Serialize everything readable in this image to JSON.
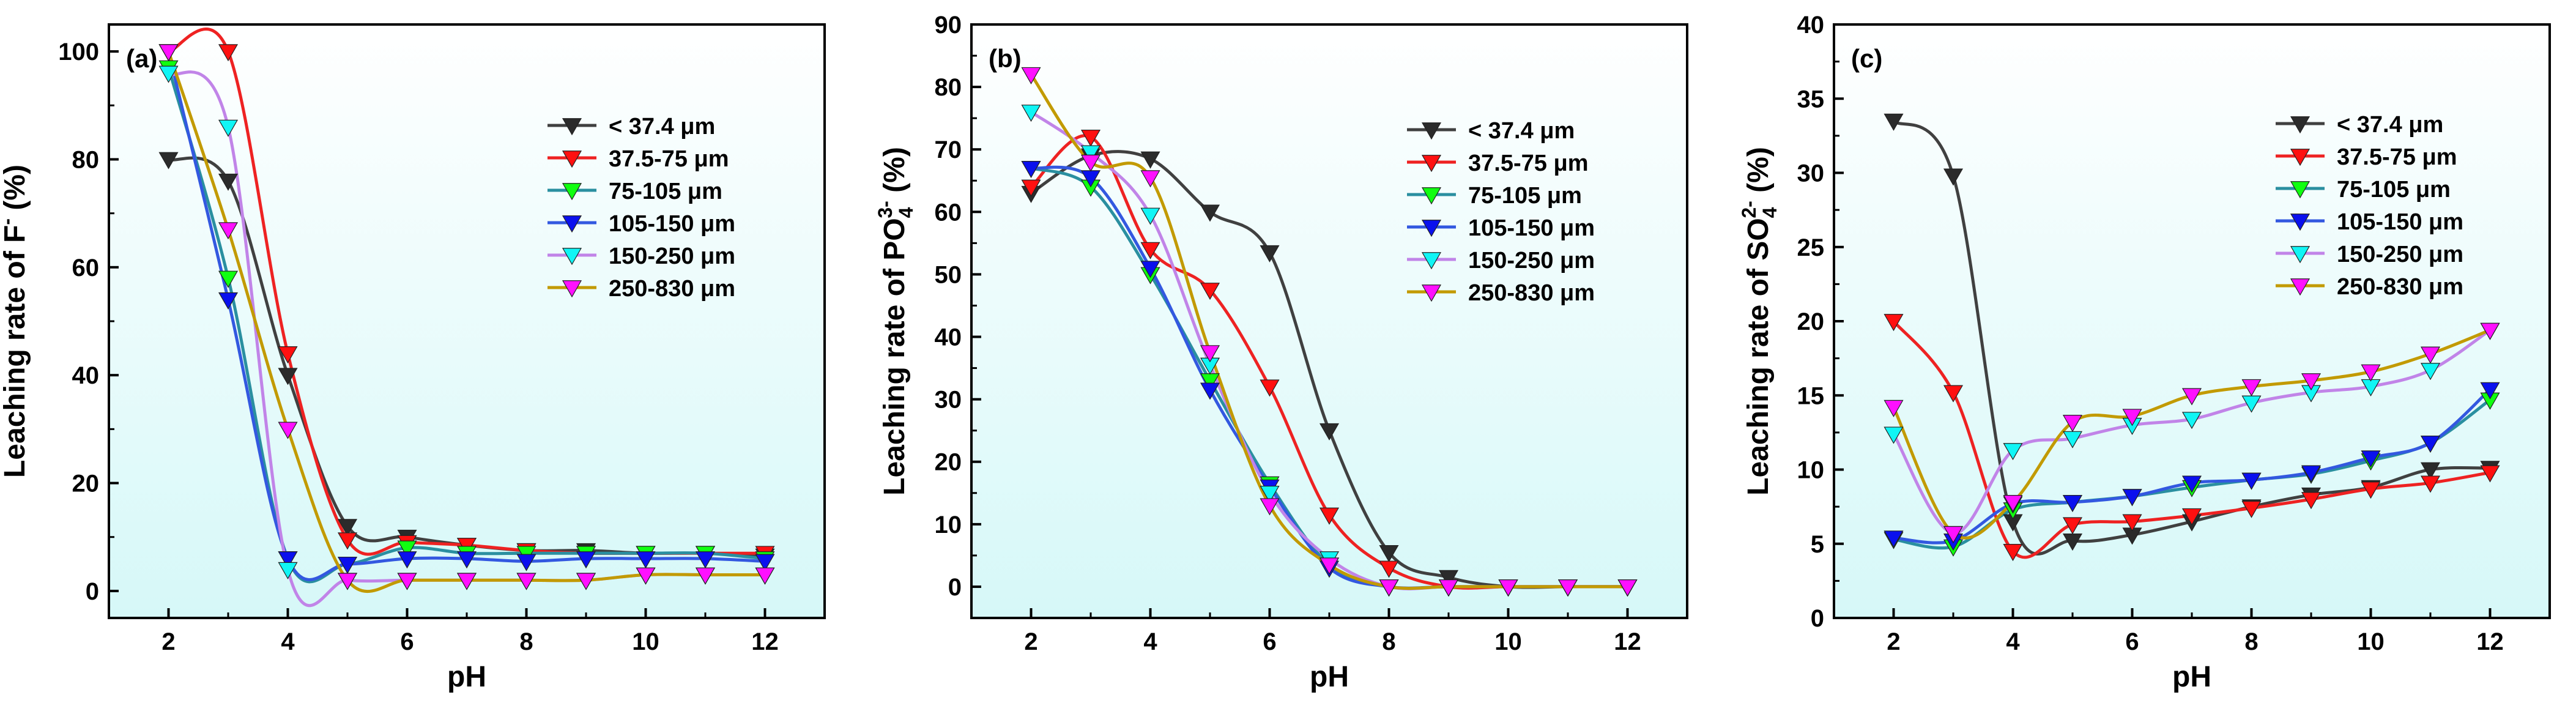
{
  "colors": {
    "lt37": "#2b2b2b",
    "s37_75": "#ff1010",
    "s75_105": "#10ff10",
    "s105_150": "#0a10ee",
    "s150_250": "#10f5f5",
    "s250_830": "#ff10ff",
    "line_lt37": "#404040",
    "line_37_75": "#ee2222",
    "line_75_105": "#2a8fa0",
    "line_105_150": "#3358e0",
    "line_150_250": "#c184e8",
    "line_250_830": "#c29a00",
    "plot_bg_top": "#ffffff",
    "plot_bg_bottom": "#d6f8f8"
  },
  "chart_data": [
    {
      "type": "line",
      "panel_label": "(a)",
      "xlabel": "pH",
      "ylabel_parts": [
        "Leaching rate of F",
        "-",
        " (%)"
      ],
      "xlim": [
        1,
        13
      ],
      "ylim": [
        -5,
        105
      ],
      "xticks": [
        2,
        4,
        6,
        8,
        10,
        12
      ],
      "yticks": [
        0,
        20,
        40,
        60,
        80,
        100
      ],
      "legend_position": "upper-right",
      "x": [
        2,
        3,
        4,
        5,
        6,
        7,
        8,
        9,
        10,
        11,
        12
      ],
      "series": [
        {
          "name": "< 37.4  μm",
          "values": [
            80,
            76,
            40,
            12,
            10,
            8.5,
            7.5,
            7.5,
            7,
            7,
            6.5
          ]
        },
        {
          "name": "37.5-75  μm",
          "values": [
            100,
            100,
            44,
            9.5,
            9,
            8.5,
            7.5,
            7,
            7,
            7,
            7
          ]
        },
        {
          "name": "75-105  μm",
          "values": [
            97,
            58,
            6,
            5,
            8,
            7,
            7,
            7,
            7,
            7,
            6
          ]
        },
        {
          "name": "105-150 μm",
          "values": [
            100,
            54,
            6,
            5,
            6,
            6,
            5.5,
            6,
            6,
            6,
            5.5
          ]
        },
        {
          "name": "150-250 μm",
          "values": [
            96,
            86,
            4,
            2,
            2,
            2,
            2,
            2,
            3,
            3,
            3
          ]
        },
        {
          "name": "250-830 μm",
          "values": [
            100,
            67,
            30,
            2,
            2,
            2,
            2,
            2,
            3,
            3,
            3
          ]
        }
      ]
    },
    {
      "type": "line",
      "panel_label": "(b)",
      "xlabel": "pH",
      "ylabel_parts": [
        "Leaching rate of PO",
        "4",
        "3-",
        " (%)"
      ],
      "xlim": [
        1,
        13
      ],
      "ylim": [
        -5,
        90
      ],
      "xticks": [
        2,
        4,
        6,
        8,
        10,
        12
      ],
      "yticks": [
        0,
        10,
        20,
        30,
        40,
        50,
        60,
        70,
        80,
        90
      ],
      "legend_position": "upper-right",
      "x": [
        2,
        3,
        4,
        5,
        6,
        7,
        8,
        9,
        10,
        11,
        12
      ],
      "series": [
        {
          "name": "< 37.4  μm",
          "values": [
            63,
            69,
            68.5,
            60,
            53.5,
            25,
            5.5,
            1.5,
            0,
            0,
            0
          ]
        },
        {
          "name": "37.5-75  μm",
          "values": [
            64,
            72,
            54,
            47.5,
            32,
            11.5,
            3,
            0,
            0,
            0,
            0
          ]
        },
        {
          "name": "75-105  μm",
          "values": [
            67,
            64,
            50,
            33,
            16.5,
            3.5,
            0,
            0,
            0,
            0,
            0
          ]
        },
        {
          "name": "105-150 μm",
          "values": [
            67,
            65.5,
            51,
            31.5,
            16,
            3,
            0,
            0,
            0,
            0,
            0
          ]
        },
        {
          "name": "150-250 μm",
          "values": [
            76,
            69.5,
            59.5,
            35.5,
            15,
            4.5,
            0,
            0,
            0,
            0,
            0
          ]
        },
        {
          "name": "250-830 μm",
          "values": [
            82,
            68,
            65.5,
            37.5,
            13,
            3.5,
            0,
            0,
            0,
            0,
            0
          ]
        }
      ]
    },
    {
      "type": "line",
      "panel_label": "(c)",
      "xlabel": "pH",
      "ylabel_parts": [
        "Leaching rate of SO",
        "4",
        "2-",
        " (%)"
      ],
      "xlim": [
        1,
        13
      ],
      "ylim": [
        0,
        40
      ],
      "xticks": [
        2,
        4,
        6,
        8,
        10,
        12
      ],
      "yticks": [
        0,
        5,
        10,
        15,
        20,
        25,
        30,
        35,
        40
      ],
      "legend_position": "upper-right",
      "x": [
        2,
        3,
        4,
        5,
        6,
        7,
        8,
        9,
        10,
        11,
        12
      ],
      "series": [
        {
          "name": "< 37.4  μm",
          "values": [
            33.5,
            29.8,
            6.5,
            5.2,
            5.6,
            6.5,
            7.5,
            8.3,
            8.8,
            10,
            10.1
          ]
        },
        {
          "name": "37.5-75  μm",
          "values": [
            20,
            15.2,
            4.5,
            6.3,
            6.5,
            6.9,
            7.4,
            8,
            8.7,
            9.1,
            9.8
          ]
        },
        {
          "name": "75-105  μm",
          "values": [
            5.3,
            4.8,
            7.3,
            7.8,
            8.2,
            8.8,
            9.3,
            9.7,
            10.6,
            11.8,
            14.7
          ]
        },
        {
          "name": "105-150 μm",
          "values": [
            5.4,
            5.2,
            7.7,
            7.8,
            8.2,
            9.1,
            9.3,
            9.8,
            10.8,
            11.8,
            15.4
          ]
        },
        {
          "name": "150-250 μm",
          "values": [
            12.4,
            5.7,
            11.3,
            12.1,
            13,
            13.4,
            14.5,
            15.2,
            15.6,
            16.7,
            19.4
          ]
        },
        {
          "name": "250-830 μm",
          "values": [
            14.2,
            5.7,
            7.8,
            13.2,
            13.6,
            15,
            15.6,
            16,
            16.6,
            17.8,
            19.4
          ]
        }
      ]
    }
  ]
}
